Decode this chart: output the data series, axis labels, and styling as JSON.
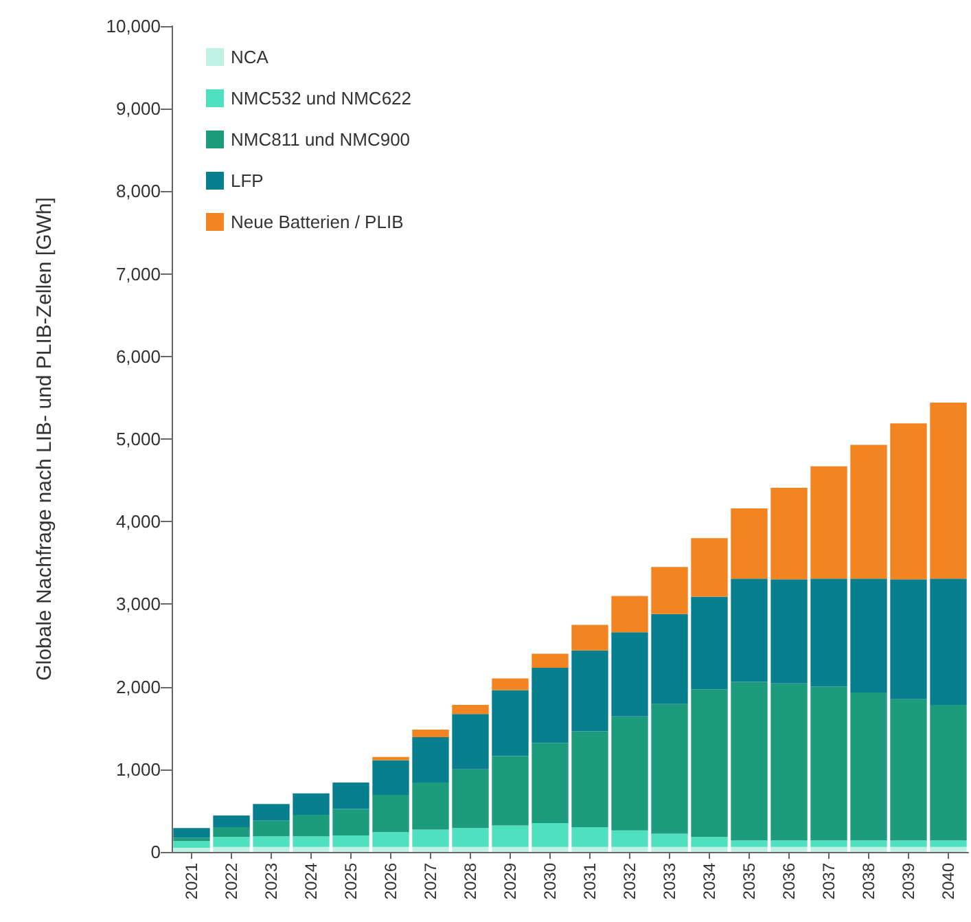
{
  "chart_data": {
    "type": "bar",
    "stacked": true,
    "ylabel": "Globale Nachfrage nach LIB- und PLIB-Zellen [GWh]",
    "categories": [
      "2021",
      "2022",
      "2023",
      "2024",
      "2025",
      "2026",
      "2027",
      "2028",
      "2029",
      "2030",
      "2031",
      "2032",
      "2033",
      "2034",
      "2035",
      "2036",
      "2037",
      "2038",
      "2039",
      "2040"
    ],
    "series": [
      {
        "name": "NCA",
        "color": "#bff2e4",
        "values": [
          50,
          60,
          60,
          60,
          60,
          60,
          60,
          60,
          60,
          60,
          60,
          60,
          60,
          60,
          60,
          60,
          60,
          60,
          60,
          60
        ]
      },
      {
        "name": "NMC532 und NMC622",
        "color": "#4fe0bf",
        "values": [
          80,
          120,
          130,
          130,
          140,
          180,
          210,
          230,
          260,
          290,
          240,
          200,
          160,
          120,
          80,
          80,
          80,
          80,
          80,
          80
        ]
      },
      {
        "name": "NMC811 und NMC900",
        "color": "#1c9c7c",
        "values": [
          40,
          120,
          190,
          260,
          320,
          450,
          570,
          710,
          840,
          970,
          1160,
          1380,
          1570,
          1790,
          1920,
          1900,
          1860,
          1790,
          1710,
          1640
        ]
      },
      {
        "name": "LFP",
        "color": "#087f8e",
        "values": [
          120,
          140,
          200,
          260,
          320,
          420,
          550,
          670,
          800,
          910,
          980,
          1020,
          1090,
          1120,
          1250,
          1260,
          1310,
          1380,
          1450,
          1530
        ]
      },
      {
        "name": "Neue Batterien / PLIB",
        "color": "#f28422",
        "values": [
          0,
          0,
          0,
          0,
          0,
          40,
          90,
          110,
          140,
          170,
          310,
          440,
          570,
          710,
          850,
          1110,
          1360,
          1620,
          1890,
          2130
        ]
      }
    ],
    "ylim": [
      0,
      10000
    ],
    "yticks": [
      0,
      {
        "value": 1000,
        "label": "1,000"
      },
      {
        "value": 2000,
        "label": "2,000"
      },
      {
        "value": 3000,
        "label": "3,000"
      },
      {
        "value": 4000,
        "label": "4,000"
      },
      {
        "value": 5000,
        "label": "5,000"
      },
      {
        "value": 6000,
        "label": "6,000"
      },
      {
        "value": 7000,
        "label": "7,000"
      },
      {
        "value": 8000,
        "label": "8,000"
      },
      {
        "value": 9000,
        "label": "9,000"
      },
      {
        "value": 10000,
        "label": "10,000"
      }
    ],
    "grid": false,
    "legend": "top left"
  }
}
